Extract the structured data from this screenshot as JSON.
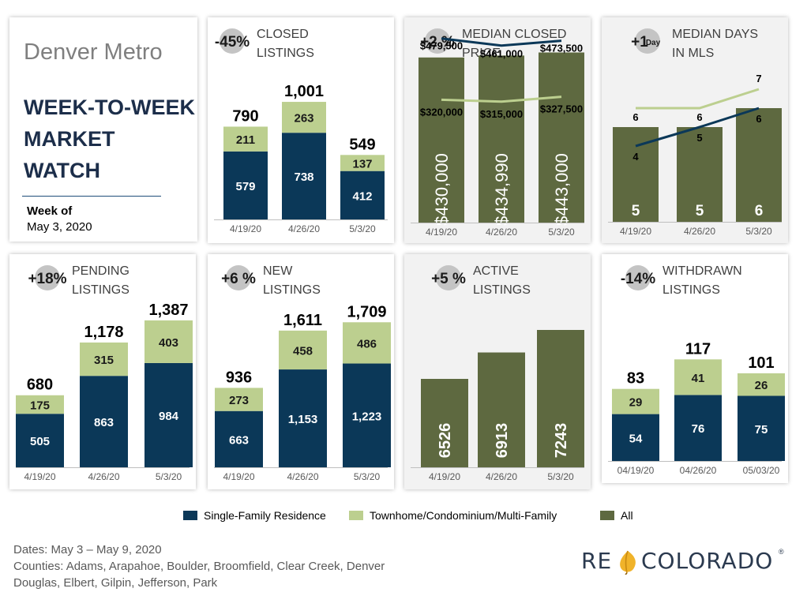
{
  "header": {
    "region": "Denver Metro",
    "title_lines": [
      "WEEK-TO-WEEK",
      "MARKET",
      "WATCH"
    ],
    "week_label": "Week of",
    "week_date": "May 3, 2020"
  },
  "colors": {
    "sfr": "#0b3858",
    "condo": "#bccf8f",
    "all": "#5e6940",
    "price_sfr_line": "#0b3858",
    "price_condo_line": "#bccf8f",
    "badge": "#c4c4c4"
  },
  "legend": [
    {
      "label": "Single-Family Residence",
      "color": "#0b3858"
    },
    {
      "label": "Townhome/Condominium/Multi-Family",
      "color": "#bccf8f"
    },
    {
      "label": "All",
      "color": "#5e6940"
    }
  ],
  "footer": {
    "lines": [
      "Dates: May 3 – May 9, 2020",
      "Counties:  Adams, Arapahoe, Boulder, Broomfield, Clear Creek, Denver",
      "Douglas, Elbert, Gilpin, Jefferson, Park"
    ]
  },
  "logo": {
    "text_left": "RE",
    "text_right": "COLORADO",
    "registered": "®"
  },
  "chart_data": [
    {
      "id": "closed",
      "type": "bar",
      "stacked": true,
      "title_lines": [
        "CLOSED",
        "LISTINGS"
      ],
      "change": "-45%",
      "categories": [
        "4/19/20",
        "4/26/20",
        "5/3/20"
      ],
      "series": [
        {
          "name": "Single-Family Residence",
          "values": [
            579,
            738,
            412
          ],
          "labels": [
            "579",
            "738",
            "412"
          ]
        },
        {
          "name": "Townhome/Condominium/Multi-Family",
          "values": [
            211,
            263,
            137
          ],
          "labels": [
            "211",
            "263",
            "137"
          ]
        }
      ],
      "totals": [
        "790",
        "1,001",
        "549"
      ],
      "ylim": [
        0,
        1230
      ]
    },
    {
      "id": "median_price",
      "type": "bar+line",
      "title_lines": [
        "MEDIAN CLOSED",
        "PRICE"
      ],
      "change": "+2 %",
      "categories": [
        "4/19/20",
        "4/26/20",
        "5/3/20"
      ],
      "bars": {
        "name": "All",
        "values": [
          430000,
          434990,
          443000
        ],
        "labels": [
          "$430,000",
          "$434,990",
          "$443,000"
        ]
      },
      "lines": [
        {
          "name": "Single-Family Residence",
          "values": [
            479500,
            461000,
            473500
          ],
          "labels": [
            "$479,500",
            "$461,000",
            "$473,500"
          ]
        },
        {
          "name": "Townhome/Condominium/Multi-Family",
          "values": [
            320000,
            315000,
            327500
          ],
          "labels": [
            "$320,000",
            "$315,000",
            "$327,500"
          ]
        }
      ]
    },
    {
      "id": "median_days",
      "type": "bar+line",
      "title_lines": [
        "MEDIAN DAYS",
        "IN MLS"
      ],
      "change": "+1",
      "change_unit": "Day",
      "categories": [
        "4/19/20",
        "4/26/20",
        "5/3/20"
      ],
      "bars": {
        "name": "All",
        "values": [
          5,
          5,
          6
        ],
        "labels": [
          "5",
          "5",
          "6"
        ]
      },
      "lines": [
        {
          "name": "Single-Family Residence",
          "values": [
            4,
            5,
            6
          ],
          "labels": [
            "4",
            "5",
            "6"
          ]
        },
        {
          "name": "Townhome/Condominium/Multi-Family",
          "values": [
            6,
            6,
            7
          ],
          "labels": [
            "6",
            "6",
            "7"
          ]
        }
      ]
    },
    {
      "id": "pending",
      "type": "bar",
      "stacked": true,
      "title_lines": [
        "PENDING",
        "LISTINGS"
      ],
      "change": "+18%",
      "categories": [
        "4/19/20",
        "4/26/20",
        "5/3/20"
      ],
      "series": [
        {
          "name": "Single-Family Residence",
          "values": [
            505,
            863,
            984
          ],
          "labels": [
            "505",
            "863",
            "984"
          ]
        },
        {
          "name": "Townhome/Condominium/Multi-Family",
          "values": [
            175,
            315,
            403
          ],
          "labels": [
            "175",
            "315",
            "403"
          ]
        }
      ],
      "totals": [
        "680",
        "1,178",
        "1,387"
      ],
      "ylim": [
        0,
        1620
      ]
    },
    {
      "id": "new",
      "type": "bar",
      "stacked": true,
      "title_lines": [
        "NEW",
        "LISTINGS"
      ],
      "change": "+6 %",
      "categories": [
        "4/19/20",
        "4/26/20",
        "5/3/20"
      ],
      "series": [
        {
          "name": "Single-Family Residence",
          "values": [
            663,
            1153,
            1223
          ],
          "labels": [
            "663",
            "1,153",
            "1,223"
          ]
        },
        {
          "name": "Townhome/Condominium/Multi-Family",
          "values": [
            273,
            458,
            486
          ],
          "labels": [
            "273",
            "458",
            "486"
          ]
        }
      ],
      "totals": [
        "936",
        "1,611",
        "1,709"
      ],
      "ylim": [
        0,
        2060
      ]
    },
    {
      "id": "active",
      "type": "bar",
      "stacked": false,
      "title_lines": [
        "ACTIVE",
        "LISTINGS"
      ],
      "change": "+5 %",
      "categories": [
        "4/19/20",
        "4/26/20",
        "5/3/20"
      ],
      "series": [
        {
          "name": "All",
          "values": [
            6526,
            6913,
            7243
          ],
          "labels": [
            "6526",
            "6913",
            "7243"
          ]
        }
      ]
    },
    {
      "id": "withdrawn",
      "type": "bar",
      "stacked": true,
      "title_lines": [
        "WITHDRAWN",
        "LISTINGS"
      ],
      "change": "-14%",
      "categories": [
        "04/19/20",
        "04/26/20",
        "05/03/20"
      ],
      "series": [
        {
          "name": "Single-Family Residence",
          "values": [
            54,
            76,
            75
          ],
          "labels": [
            "54",
            "76",
            "75"
          ]
        },
        {
          "name": "Townhome/Condominium/Multi-Family",
          "values": [
            29,
            41,
            26
          ],
          "labels": [
            "29",
            "41",
            "26"
          ]
        }
      ],
      "totals": [
        "83",
        "117",
        "101"
      ],
      "ylim": [
        0,
        140
      ]
    }
  ]
}
